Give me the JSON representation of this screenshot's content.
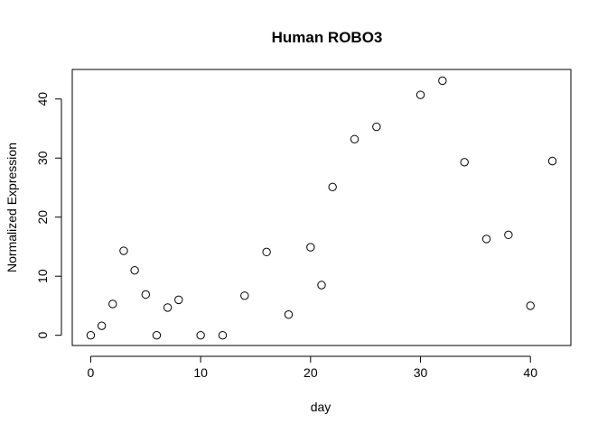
{
  "chart_data": {
    "type": "scatter",
    "title": "Human ROBO3",
    "xlabel": "day",
    "ylabel": "Normalized Expression",
    "xlim": [
      -1.68,
      43.68
    ],
    "ylim": [
      -1.73,
      45.0
    ],
    "xticks": [
      0,
      10,
      20,
      30,
      40
    ],
    "yticks": [
      0,
      10,
      20,
      30,
      40
    ],
    "grid": false,
    "series": [
      {
        "x": [
          0,
          1,
          2,
          3,
          4,
          5,
          6,
          7,
          8,
          10,
          12,
          14,
          16,
          18,
          20,
          21,
          22,
          24,
          26,
          30,
          32,
          34,
          36,
          38,
          40,
          42
        ],
        "y": [
          0.0,
          1.6,
          5.3,
          14.3,
          11.0,
          6.9,
          0.0,
          4.7,
          6.0,
          0.0,
          0.0,
          6.7,
          14.1,
          3.5,
          14.9,
          8.5,
          25.1,
          33.2,
          35.3,
          40.7,
          43.1,
          29.3,
          16.3,
          17.0,
          5.0,
          29.5
        ]
      }
    ]
  }
}
